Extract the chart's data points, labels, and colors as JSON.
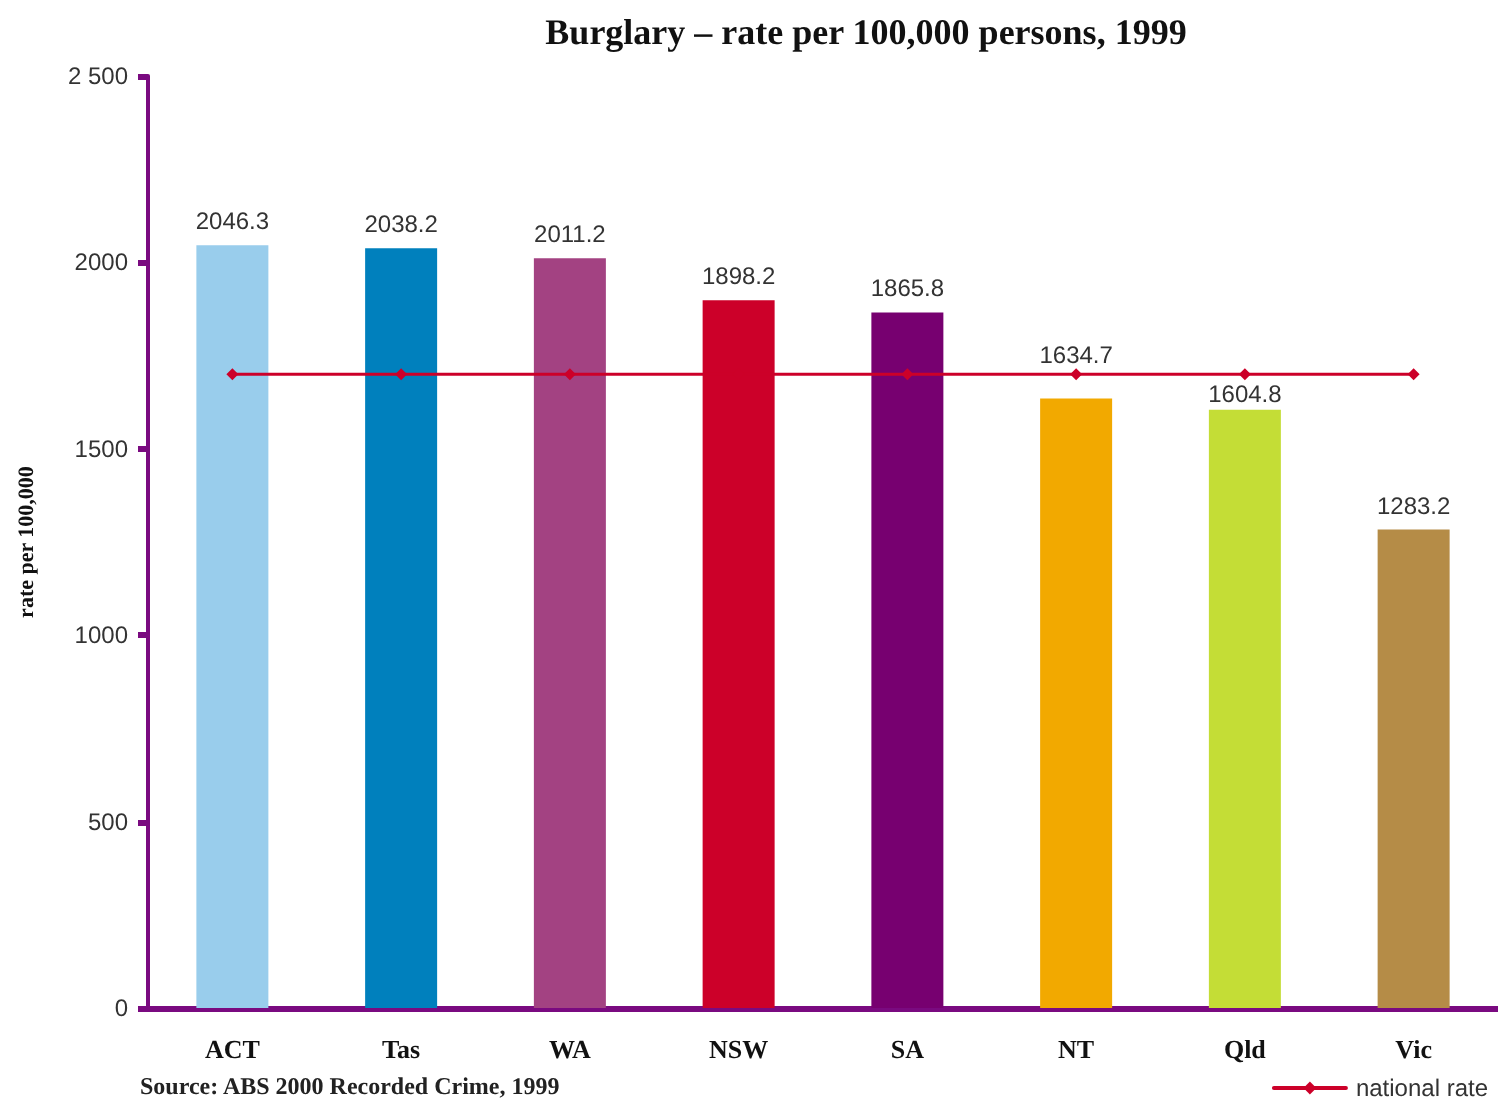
{
  "chart_data": {
    "type": "bar",
    "title": "Burglary – rate per 100,000 persons, 1999",
    "ylabel": "rate per 100,000",
    "annotations": [
      "Source: ABS 2000 Recorded Crime, 1999"
    ],
    "categories": [
      "ACT",
      "Tas",
      "WA",
      "NSW",
      "SA",
      "NT",
      "Qld",
      "Vic"
    ],
    "series": [
      {
        "values": [
          2046.3,
          2038.2,
          2011.2,
          1898.2,
          1865.8,
          1634.7,
          1604.8,
          1283.2
        ],
        "value_labels": [
          "2046.3",
          "2038.2",
          "2011.2",
          "1898.2",
          "1865.8",
          "1634.7",
          "1604.8",
          "1283.2"
        ],
        "colors": [
          "#99cdec",
          "#0080bd",
          "#a34282",
          "#cc0029",
          "#770070",
          "#f2a900",
          "#c4dd36",
          "#b58c47"
        ]
      },
      {
        "type": "line",
        "name": "national rate",
        "color": "#cc0029",
        "values": [
          1700,
          1700,
          1700,
          1700,
          1700,
          1700,
          1700,
          1700
        ],
        "marker": "diamond",
        "line_style": "solid"
      }
    ],
    "ylim": [
      0,
      2500
    ],
    "yticks": [
      0,
      500,
      1000,
      1500,
      2000,
      {
        "value": 2500,
        "label": "2 500"
      }
    ],
    "grid": false,
    "legend": "bottom right"
  }
}
